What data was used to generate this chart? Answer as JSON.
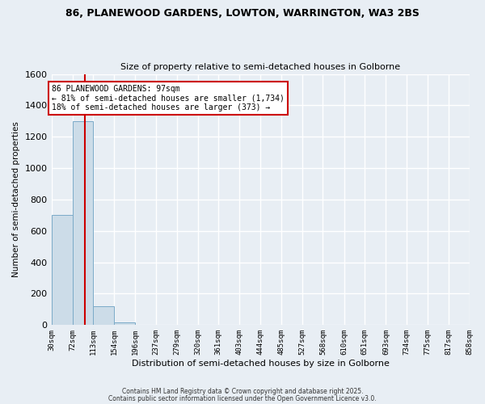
{
  "title_line1": "86, PLANEWOOD GARDENS, LOWTON, WARRINGTON, WA3 2BS",
  "title_line2": "Size of property relative to semi-detached houses in Golborne",
  "xlabel": "Distribution of semi-detached houses by size in Golborne",
  "ylabel": "Number of semi-detached properties",
  "bin_edges": [
    30,
    72,
    113,
    154,
    196,
    237,
    279,
    320,
    361,
    403,
    444,
    485,
    527,
    568,
    610,
    651,
    693,
    734,
    775,
    817,
    858
  ],
  "bar_heights": [
    700,
    1300,
    120,
    15,
    2,
    1,
    0,
    0,
    0,
    0,
    0,
    0,
    0,
    0,
    0,
    0,
    0,
    0,
    0,
    0
  ],
  "bar_color": "#ccdce8",
  "bar_edge_color": "#7baac8",
  "property_sqm": 97,
  "property_label": "86 PLANEWOOD GARDENS: 97sqm",
  "annotation_line1": "← 81% of semi-detached houses are smaller (1,734)",
  "annotation_line2": "18% of semi-detached houses are larger (373) →",
  "red_line_color": "#cc0000",
  "annotation_box_color": "#ffffff",
  "annotation_box_edge": "#cc0000",
  "ylim": [
    0,
    1600
  ],
  "footer_line1": "Contains HM Land Registry data © Crown copyright and database right 2025.",
  "footer_line2": "Contains public sector information licensed under the Open Government Licence v3.0.",
  "bg_color": "#e8eef4",
  "plot_bg_color": "#e8eef4",
  "grid_color": "#ffffff",
  "title_fontsize": 9,
  "subtitle_fontsize": 8
}
